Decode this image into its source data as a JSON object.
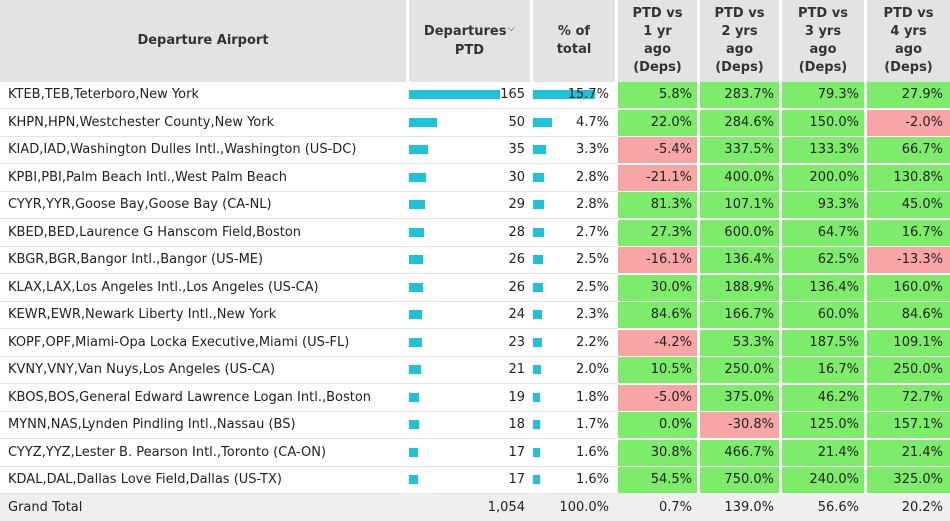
{
  "headers": {
    "airport": "Departure Airport",
    "departures": [
      "Departures",
      "PTD"
    ],
    "sort_icon": "⌵",
    "pct_total": [
      "% of",
      "total"
    ],
    "cmp1": [
      "PTD vs",
      "1 yr",
      "ago",
      "(Deps)"
    ],
    "cmp2": [
      "PTD vs",
      "2 yrs",
      "ago",
      "(Deps)"
    ],
    "cmp3": [
      "PTD vs",
      "3 yrs",
      "ago",
      "(Deps)"
    ],
    "cmp4": [
      "PTD vs",
      "4 yrs",
      "ago",
      "(Deps)"
    ]
  },
  "colors": {
    "bar": "#1ec3d8",
    "positive": "#7dec6a",
    "negative": "#f7a5a5",
    "header_bg": "#e3e3e3"
  },
  "rows": [
    {
      "airport": "KTEB,TEB,Teterboro,New York",
      "departures": 165,
      "departures_label": "165",
      "pct": "15.7%",
      "pct_value": 15.7,
      "c1": "5.8%",
      "c2": "283.7%",
      "c3": "79.3%",
      "c4": "27.9%"
    },
    {
      "airport": "KHPN,HPN,Westchester County,New York",
      "departures": 50,
      "departures_label": "50",
      "pct": "4.7%",
      "pct_value": 4.7,
      "c1": "22.0%",
      "c2": "284.6%",
      "c3": "150.0%",
      "c4": "-2.0%"
    },
    {
      "airport": "KIAD,IAD,Washington Dulles Intl.,Washington (US-DC)",
      "departures": 35,
      "departures_label": "35",
      "pct": "3.3%",
      "pct_value": 3.3,
      "c1": "-5.4%",
      "c2": "337.5%",
      "c3": "133.3%",
      "c4": "66.7%"
    },
    {
      "airport": "KPBI,PBI,Palm Beach Intl.,West Palm Beach",
      "departures": 30,
      "departures_label": "30",
      "pct": "2.8%",
      "pct_value": 2.8,
      "c1": "-21.1%",
      "c2": "400.0%",
      "c3": "200.0%",
      "c4": "130.8%"
    },
    {
      "airport": "CYYR,YYR,Goose Bay,Goose Bay (CA-NL)",
      "departures": 29,
      "departures_label": "29",
      "pct": "2.8%",
      "pct_value": 2.8,
      "c1": "81.3%",
      "c2": "107.1%",
      "c3": "93.3%",
      "c4": "45.0%"
    },
    {
      "airport": "KBED,BED,Laurence G Hanscom Field,Boston",
      "departures": 28,
      "departures_label": "28",
      "pct": "2.7%",
      "pct_value": 2.7,
      "c1": "27.3%",
      "c2": "600.0%",
      "c3": "64.7%",
      "c4": "16.7%"
    },
    {
      "airport": "KBGR,BGR,Bangor Intl.,Bangor (US-ME)",
      "departures": 26,
      "departures_label": "26",
      "pct": "2.5%",
      "pct_value": 2.5,
      "c1": "-16.1%",
      "c2": "136.4%",
      "c3": "62.5%",
      "c4": "-13.3%"
    },
    {
      "airport": "KLAX,LAX,Los Angeles Intl.,Los Angeles (US-CA)",
      "departures": 26,
      "departures_label": "26",
      "pct": "2.5%",
      "pct_value": 2.5,
      "c1": "30.0%",
      "c2": "188.9%",
      "c3": "136.4%",
      "c4": "160.0%"
    },
    {
      "airport": "KEWR,EWR,Newark Liberty Intl.,New York",
      "departures": 24,
      "departures_label": "24",
      "pct": "2.3%",
      "pct_value": 2.3,
      "c1": "84.6%",
      "c2": "166.7%",
      "c3": "60.0%",
      "c4": "84.6%"
    },
    {
      "airport": "KOPF,OPF,Miami-Opa Locka Executive,Miami (US-FL)",
      "departures": 23,
      "departures_label": "23",
      "pct": "2.2%",
      "pct_value": 2.2,
      "c1": "-4.2%",
      "c2": "53.3%",
      "c3": "187.5%",
      "c4": "109.1%"
    },
    {
      "airport": "KVNY,VNY,Van Nuys,Los Angeles (US-CA)",
      "departures": 21,
      "departures_label": "21",
      "pct": "2.0%",
      "pct_value": 2.0,
      "c1": "10.5%",
      "c2": "250.0%",
      "c3": "16.7%",
      "c4": "250.0%"
    },
    {
      "airport": "KBOS,BOS,General Edward Lawrence Logan Intl.,Boston",
      "departures": 19,
      "departures_label": "19",
      "pct": "1.8%",
      "pct_value": 1.8,
      "c1": "-5.0%",
      "c2": "375.0%",
      "c3": "46.2%",
      "c4": "72.7%"
    },
    {
      "airport": "MYNN,NAS,Lynden Pindling Intl.,Nassau (BS)",
      "departures": 18,
      "departures_label": "18",
      "pct": "1.7%",
      "pct_value": 1.7,
      "c1": "0.0%",
      "c2": "-30.8%",
      "c3": "125.0%",
      "c4": "157.1%"
    },
    {
      "airport": "CYYZ,YYZ,Lester B. Pearson Intl.,Toronto (CA-ON)",
      "departures": 17,
      "departures_label": "17",
      "pct": "1.6%",
      "pct_value": 1.6,
      "c1": "30.8%",
      "c2": "466.7%",
      "c3": "21.4%",
      "c4": "21.4%"
    },
    {
      "airport": "KDAL,DAL,Dallas Love Field,Dallas (US-TX)",
      "departures": 17,
      "departures_label": "17",
      "pct": "1.6%",
      "pct_value": 1.6,
      "c1": "54.5%",
      "c2": "750.0%",
      "c3": "240.0%",
      "c4": "325.0%"
    }
  ],
  "grand_total": {
    "label": "Grand Total",
    "departures": "1,054",
    "pct": "100.0%",
    "c1": "0.7%",
    "c2": "139.0%",
    "c3": "56.6%",
    "c4": "20.2%"
  }
}
